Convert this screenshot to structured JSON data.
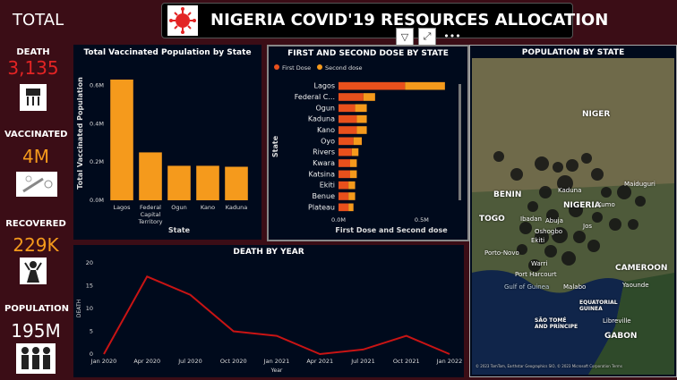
{
  "header": {
    "total_label": "TOTAL",
    "title": "NIGERIA COVID'19 RESOURCES ALLOCATION"
  },
  "kpis": [
    {
      "label": "DEATH",
      "value": "3,135",
      "color": "#e32424"
    },
    {
      "label": "VACCINATED",
      "value": "4M",
      "color": "#f59a1c"
    },
    {
      "label": "RECOVERED",
      "value": "229K",
      "color": "#f59a1c"
    },
    {
      "label": "POPULATION",
      "value": "195M",
      "color": "#ffffff"
    }
  ],
  "charts": {
    "vaccinated": {
      "title": "Total Vaccinated Population by State",
      "chart_data": {
        "type": "bar",
        "categories": [
          "Lagos",
          "Federal Capital Territory",
          "Ogun",
          "Kano",
          "Kaduna"
        ],
        "category_lines": [
          [
            "Lagos"
          ],
          [
            "Federal",
            "Capital",
            "Territory"
          ],
          [
            "Ogun"
          ],
          [
            "Kano"
          ],
          [
            "Kaduna"
          ]
        ],
        "values": [
          0.63,
          0.25,
          0.18,
          0.18,
          0.175
        ],
        "ylim": [
          0,
          0.7
        ],
        "yticks": [
          "0.0M",
          "0.2M",
          "0.4M",
          "0.6M"
        ],
        "xlabel": "State",
        "ylabel": "Total Vaccinated Population",
        "color": "#f59a1c"
      }
    },
    "doses": {
      "title": "FIRST AND SECOND DOSE BY STATE",
      "legend": [
        "First Dose",
        "Second dose"
      ],
      "chart_data": {
        "type": "bar",
        "categories": [
          "Lagos",
          "Federal C...",
          "Ogun",
          "Kaduna",
          "Kano",
          "Oyo",
          "Rivers",
          "Kwara",
          "Katsina",
          "Ekiti",
          "Benue",
          "Plateau"
        ],
        "series": [
          {
            "name": "First Dose",
            "values": [
              0.4,
              0.15,
              0.1,
              0.11,
              0.11,
              0.09,
              0.08,
              0.07,
              0.07,
              0.06,
              0.06,
              0.06
            ],
            "color": "#e8501c"
          },
          {
            "name": "Second dose",
            "values": [
              0.24,
              0.07,
              0.07,
              0.06,
              0.06,
              0.05,
              0.04,
              0.04,
              0.04,
              0.04,
              0.04,
              0.03
            ],
            "color": "#f59a1c"
          }
        ],
        "xlim": [
          0,
          0.7
        ],
        "xticks": [
          "0.0M",
          "0.5M"
        ],
        "xlabel": "First Dose and Second dose",
        "ylabel": "State"
      }
    },
    "deaths": {
      "title": "DEATH BY YEAR",
      "chart_data": {
        "type": "line",
        "x": [
          "Jan 2020",
          "Apr 2020",
          "Jul 2020",
          "Oct 2020",
          "Jan 2021",
          "Apr 2021",
          "Jul 2021",
          "Oct 2021",
          "Jan 2022"
        ],
        "values": [
          0,
          17,
          13,
          5,
          4,
          0,
          1,
          4,
          0
        ],
        "ylim": [
          0,
          20
        ],
        "yticks": [
          "0",
          "5",
          "10",
          "15",
          "20"
        ],
        "xlabel": "Year",
        "ylabel": "DEATH",
        "color": "#c81414"
      }
    },
    "map": {
      "title": "POPULATION BY STATE",
      "labels": [
        "NIGER",
        "NIGERIA",
        "BENIN",
        "TOGO",
        "CAMEROON",
        "GABON",
        "Maiduguri",
        "Kaduna",
        "Abuja",
        "Port Harcourt",
        "Warri",
        "Porto-Novo",
        "Yaounde",
        "Malabo",
        "Libreville",
        "Gulf of Guinea",
        "EQUATORIAL GUINEA",
        "SÃO TOMÉ AND PRÍNCIPE",
        "Ibadan",
        "Oshogbo",
        "Ekiti",
        "Jos",
        "Kumo"
      ],
      "attribution": "© 2023 TomTom, Earthstar Geographics SIO, © 2023 Microsoft Corporation Terms"
    }
  }
}
